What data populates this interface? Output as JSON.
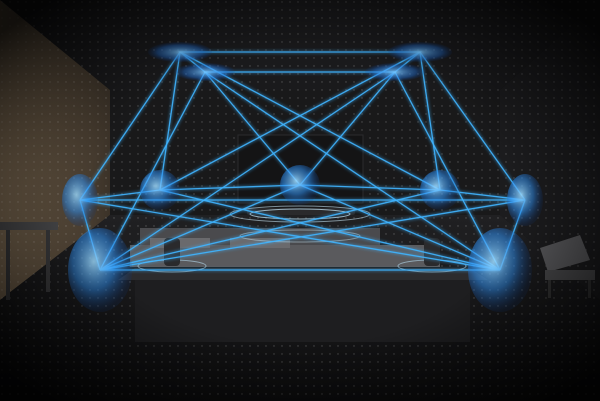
{
  "scene": {
    "kind": "3D surround-sound visualization in a dark home theater room",
    "colors": {
      "beam": "#3fb4ff",
      "beam_core": "#bfe9ff",
      "wall": "#1a1a1b",
      "floor": "#151516",
      "stone_wall": "#6b5a45",
      "furniture": "#3a3a3c"
    },
    "icons": [
      "speaker-cone",
      "sound-wave-ring",
      "ceiling-reflection-disc"
    ]
  }
}
